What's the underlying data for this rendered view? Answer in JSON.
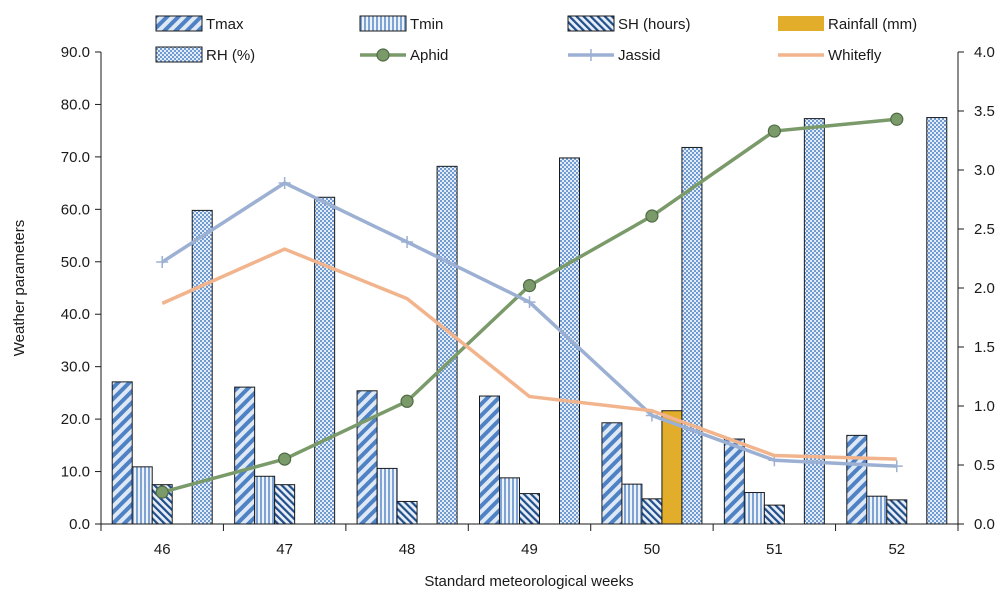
{
  "chart_data": {
    "type": "bar+line",
    "xlabel": "Standard meteorological weeks",
    "ylabel": "Weather parameters",
    "y2label": "",
    "categories": [
      "46",
      "47",
      "48",
      "49",
      "50",
      "51",
      "52"
    ],
    "ylim": [
      0,
      90
    ],
    "y_ticks": [
      "0.0",
      "10.0",
      "20.0",
      "30.0",
      "40.0",
      "50.0",
      "60.0",
      "70.0",
      "80.0",
      "90.0"
    ],
    "y2lim": [
      0,
      4
    ],
    "y2_ticks": [
      "0.0",
      "0.5",
      "1.0",
      "1.5",
      "2.0",
      "2.5",
      "3.0",
      "3.5",
      "4.0"
    ],
    "grid": false,
    "legend_position": "top",
    "bar_series": [
      {
        "name": "Tmax",
        "values": [
          27.1,
          26.1,
          25.4,
          24.4,
          19.3,
          16.2,
          16.9
        ],
        "color": "#5b8bc9",
        "pattern": "wide-diagonal"
      },
      {
        "name": "Tmin",
        "values": [
          10.9,
          9.1,
          10.6,
          8.8,
          7.6,
          6.0,
          5.3
        ],
        "color": "#5b8bc9",
        "pattern": "vertical"
      },
      {
        "name": "SH (hours)",
        "values": [
          7.5,
          7.5,
          4.3,
          5.8,
          4.8,
          3.6,
          4.6
        ],
        "color": "#1f4e8a",
        "pattern": "narrow-diagonal"
      },
      {
        "name": "Rainfall (mm)",
        "values": [
          0,
          0,
          0,
          0,
          21.6,
          0,
          0
        ],
        "color": "#e2ad2a",
        "pattern": "solid"
      },
      {
        "name": "RH (%)",
        "values": [
          59.8,
          62.3,
          68.2,
          69.8,
          71.8,
          77.3,
          77.5
        ],
        "color": "#6f9bd1",
        "pattern": "checker"
      }
    ],
    "line_series": [
      {
        "name": "Aphid",
        "values": [
          0.27,
          0.55,
          1.04,
          2.02,
          2.61,
          3.33,
          3.43
        ],
        "color": "#7a9a6a",
        "marker": "circle"
      },
      {
        "name": "Jassid",
        "values": [
          2.22,
          2.89,
          2.39,
          1.88,
          0.92,
          0.54,
          0.49
        ],
        "color": "#9cb0d3",
        "marker": "plus"
      },
      {
        "name": "Whitefly",
        "values": [
          1.87,
          2.33,
          1.91,
          1.08,
          0.96,
          0.58,
          0.55
        ],
        "color": "#f2b48c",
        "marker": "none"
      }
    ]
  }
}
